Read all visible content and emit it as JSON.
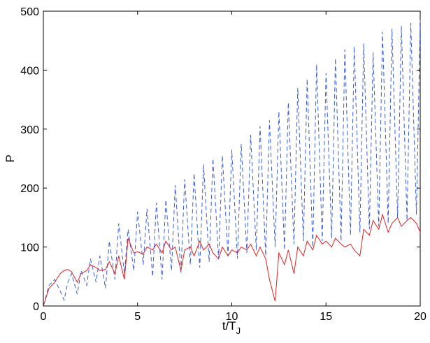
{
  "chart_data": {
    "type": "line",
    "title": "",
    "xlabel": "t/T",
    "xlabel_subscript": "J",
    "ylabel": "P",
    "xlim": [
      0,
      20
    ],
    "ylim": [
      0,
      500
    ],
    "xticks": [
      "0",
      "5",
      "10",
      "15",
      "20"
    ],
    "yticks": [
      "0",
      "100",
      "200",
      "300",
      "400",
      "500"
    ],
    "grid": false,
    "legend": "none",
    "series": [
      {
        "color": "#3b5bdb",
        "style": "dashed",
        "x": [
          0,
          0.3,
          0.6,
          0.9,
          1.1,
          1.3,
          1.5,
          1.8,
          2.0,
          2.3,
          2.5,
          2.8,
          3.0,
          3.3,
          3.5,
          3.8,
          4.0,
          4.3,
          4.5,
          4.8,
          5.0,
          5.3,
          5.5,
          5.8,
          6.0,
          6.3,
          6.5,
          6.8,
          7.0,
          7.3,
          7.5,
          7.8,
          8.0,
          8.3,
          8.5,
          8.8,
          9.0,
          9.3,
          9.5,
          9.8,
          10.0,
          10.3,
          10.5,
          10.8,
          11.0,
          11.3,
          11.5,
          11.8,
          12.0,
          12.3,
          12.5,
          12.8,
          13.0,
          13.3,
          13.5,
          13.8,
          14.0,
          14.3,
          14.5,
          14.8,
          15.0,
          15.3,
          15.5,
          15.8,
          16.0,
          16.3,
          16.5,
          16.8,
          17.0,
          17.3,
          17.5,
          17.8,
          18.0,
          18.3,
          18.5,
          18.8,
          19.0,
          19.3,
          19.5,
          19.8,
          20.0
        ],
        "y": [
          0,
          35,
          45,
          25,
          10,
          40,
          55,
          20,
          60,
          35,
          80,
          40,
          85,
          30,
          110,
          45,
          140,
          55,
          130,
          60,
          160,
          70,
          165,
          50,
          175,
          45,
          180,
          60,
          205,
          55,
          215,
          70,
          225,
          65,
          240,
          75,
          250,
          80,
          255,
          85,
          265,
          80,
          275,
          90,
          290,
          95,
          305,
          85,
          315,
          100,
          330,
          95,
          345,
          105,
          370,
          110,
          385,
          100,
          410,
          110,
          395,
          115,
          420,
          110,
          435,
          120,
          440,
          125,
          445,
          130,
          430,
          135,
          465,
          140,
          470,
          150,
          475,
          145,
          480,
          155,
          485
        ]
      },
      {
        "color": "#e02020",
        "style": "solid",
        "x": [
          0,
          0.3,
          0.6,
          0.9,
          1.1,
          1.3,
          1.5,
          1.8,
          2.0,
          2.3,
          2.5,
          2.8,
          3.0,
          3.3,
          3.5,
          3.8,
          4.0,
          4.3,
          4.5,
          4.8,
          5.0,
          5.3,
          5.5,
          5.8,
          6.0,
          6.3,
          6.5,
          6.8,
          7.0,
          7.3,
          7.5,
          7.8,
          8.0,
          8.3,
          8.5,
          8.8,
          9.0,
          9.3,
          9.5,
          9.8,
          10.0,
          10.3,
          10.5,
          10.8,
          11.0,
          11.3,
          11.5,
          11.8,
          12.0,
          12.3,
          12.5,
          12.8,
          13.0,
          13.3,
          13.5,
          13.8,
          14.0,
          14.3,
          14.5,
          14.8,
          15.0,
          15.3,
          15.5,
          15.8,
          16.0,
          16.3,
          16.5,
          16.8,
          17.0,
          17.3,
          17.5,
          17.8,
          18.0,
          18.3,
          18.5,
          18.8,
          19.0,
          19.3,
          19.5,
          19.8,
          20.0
        ],
        "y": [
          0,
          30,
          40,
          55,
          60,
          62,
          58,
          40,
          55,
          60,
          70,
          65,
          60,
          62,
          75,
          55,
          85,
          45,
          115,
          90,
          92,
          88,
          100,
          95,
          105,
          90,
          110,
          95,
          100,
          60,
          95,
          100,
          85,
          110,
          95,
          105,
          90,
          80,
          100,
          85,
          95,
          90,
          100,
          95,
          105,
          85,
          100,
          80,
          45,
          8,
          90,
          70,
          95,
          55,
          100,
          85,
          110,
          95,
          120,
          105,
          110,
          100,
          115,
          105,
          100,
          105,
          95,
          85,
          130,
          120,
          145,
          130,
          155,
          125,
          140,
          150,
          135,
          145,
          150,
          140,
          125
        ]
      }
    ]
  }
}
